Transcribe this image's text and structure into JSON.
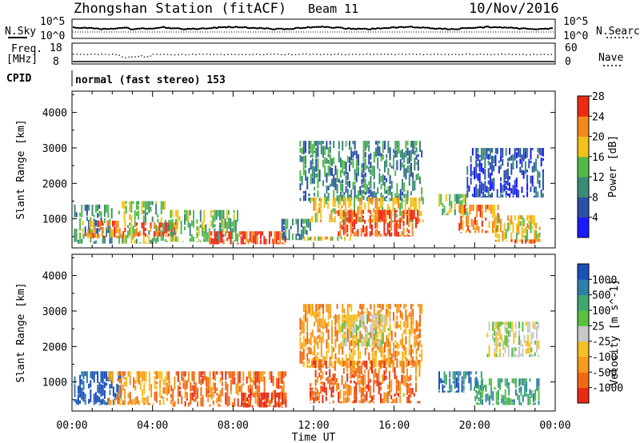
{
  "header": {
    "station": "Zhongshan Station (fitACF)",
    "beam": "Beam 11",
    "date": "10/Nov/2016"
  },
  "strips": {
    "nsky_label": "N.Sky",
    "nsky_tick_top": "10^5",
    "nsky_tick_bottom": "10^0",
    "nsearch_label": "N.Search",
    "nsearch_tick_top": "10^5",
    "nsearch_tick_bottom": "10^0",
    "freq_label": "Freq.",
    "freq_unit": "[MHz]",
    "freq_tick_top": "18",
    "freq_tick_bottom": "8",
    "nave_label": "Nave",
    "nave_tick_top": "60",
    "nave_tick_bottom": "0",
    "cpid_label": "CPID",
    "cpid_value": "normal (fast stereo) 153"
  },
  "chart_data": [
    {
      "type": "heatmap",
      "name": "power",
      "ylabel": "Slant Range [km]",
      "xlabel": "",
      "x_ticks": [
        "00:00",
        "04:00",
        "08:00",
        "12:00",
        "16:00",
        "20:00",
        "00:00"
      ],
      "x_range_hours": [
        0,
        24
      ],
      "y_ticks": [
        1000,
        2000,
        3000,
        4000
      ],
      "ylim": [
        180,
        4600
      ],
      "colorbar": {
        "label": "Power [dB]",
        "ticks": [
          "4",
          "8",
          "12",
          "16",
          "20",
          "24",
          "28"
        ],
        "colors": [
          "#1a1aff",
          "#2a50a8",
          "#3a8a7a",
          "#52b948",
          "#f2c21a",
          "#f58a1a",
          "#ee2a14"
        ]
      },
      "regions": [
        {
          "t0": 0.1,
          "t1": 2.0,
          "r0": 300,
          "r1": 1400,
          "level": 2
        },
        {
          "t0": 0.5,
          "t1": 2.6,
          "r0": 450,
          "r1": 950,
          "level": 5
        },
        {
          "t0": 2.3,
          "t1": 4.6,
          "r0": 300,
          "r1": 1500,
          "level": 3
        },
        {
          "t0": 3.0,
          "t1": 5.2,
          "r0": 500,
          "r1": 900,
          "level": 6
        },
        {
          "t0": 4.6,
          "t1": 8.2,
          "r0": 350,
          "r1": 1250,
          "level": 3
        },
        {
          "t0": 6.8,
          "t1": 10.6,
          "r0": 280,
          "r1": 650,
          "level": 6
        },
        {
          "t0": 10.4,
          "t1": 11.9,
          "r0": 400,
          "r1": 1000,
          "level": 2
        },
        {
          "t0": 11.3,
          "t1": 17.4,
          "r0": 1500,
          "r1": 3200,
          "level": 2
        },
        {
          "t0": 11.8,
          "t1": 17.4,
          "r0": 900,
          "r1": 1600,
          "level": 4
        },
        {
          "t0": 13.2,
          "t1": 17.2,
          "r0": 500,
          "r1": 1250,
          "level": 6
        },
        {
          "t0": 11.5,
          "t1": 13.8,
          "r0": 380,
          "r1": 500,
          "level": 4
        },
        {
          "t0": 18.2,
          "t1": 19.6,
          "r0": 1100,
          "r1": 1700,
          "level": 3
        },
        {
          "t0": 19.2,
          "t1": 21.2,
          "r0": 600,
          "r1": 1400,
          "level": 5
        },
        {
          "t0": 19.6,
          "t1": 23.4,
          "r0": 1600,
          "r1": 3000,
          "level": 1
        },
        {
          "t0": 21.0,
          "t1": 23.2,
          "r0": 350,
          "r1": 1100,
          "level": 4
        },
        {
          "t0": 21.8,
          "t1": 23.0,
          "r0": 300,
          "r1": 420,
          "level": 6
        }
      ]
    },
    {
      "type": "heatmap",
      "name": "velocity",
      "ylabel": "Slant Range [km]",
      "xlabel": "Time UT",
      "x_ticks": [
        "00:00",
        "04:00",
        "08:00",
        "12:00",
        "16:00",
        "20:00",
        "00:00"
      ],
      "x_range_hours": [
        0,
        24
      ],
      "y_ticks": [
        1000,
        2000,
        3000,
        4000
      ],
      "ylim": [
        180,
        4600
      ],
      "colorbar": {
        "label": "Velocity [m s^-1]",
        "ticks": [
          "1000",
          "500",
          "100",
          "25",
          "-25",
          "-100",
          "-500",
          "-1000"
        ],
        "colors": [
          "#1a50b8",
          "#2f7ea8",
          "#3ea870",
          "#5ac040",
          "#c8c8c8",
          "#f5c020",
          "#f59a1a",
          "#f06a14",
          "#e82a14"
        ]
      },
      "regions": [
        {
          "t0": 0.1,
          "t1": 2.4,
          "r0": 350,
          "r1": 1300,
          "level": 0
        },
        {
          "t0": 1.8,
          "t1": 4.8,
          "r0": 350,
          "r1": 1300,
          "level": 6
        },
        {
          "t0": 4.8,
          "t1": 10.6,
          "r0": 300,
          "r1": 1300,
          "level": 7
        },
        {
          "t0": 8.4,
          "t1": 10.6,
          "r0": 280,
          "r1": 700,
          "level": 8
        },
        {
          "t0": 11.3,
          "t1": 17.4,
          "r0": 1400,
          "r1": 3200,
          "level": 6
        },
        {
          "t0": 13.4,
          "t1": 15.8,
          "r0": 2000,
          "r1": 2900,
          "level": 4
        },
        {
          "t0": 11.8,
          "t1": 17.3,
          "r0": 400,
          "r1": 1600,
          "level": 7
        },
        {
          "t0": 18.2,
          "t1": 20.4,
          "r0": 700,
          "r1": 1300,
          "level": 1
        },
        {
          "t0": 20.0,
          "t1": 23.2,
          "r0": 350,
          "r1": 1100,
          "level": 2
        },
        {
          "t0": 20.6,
          "t1": 23.2,
          "r0": 1700,
          "r1": 2700,
          "level": 4
        }
      ]
    }
  ]
}
